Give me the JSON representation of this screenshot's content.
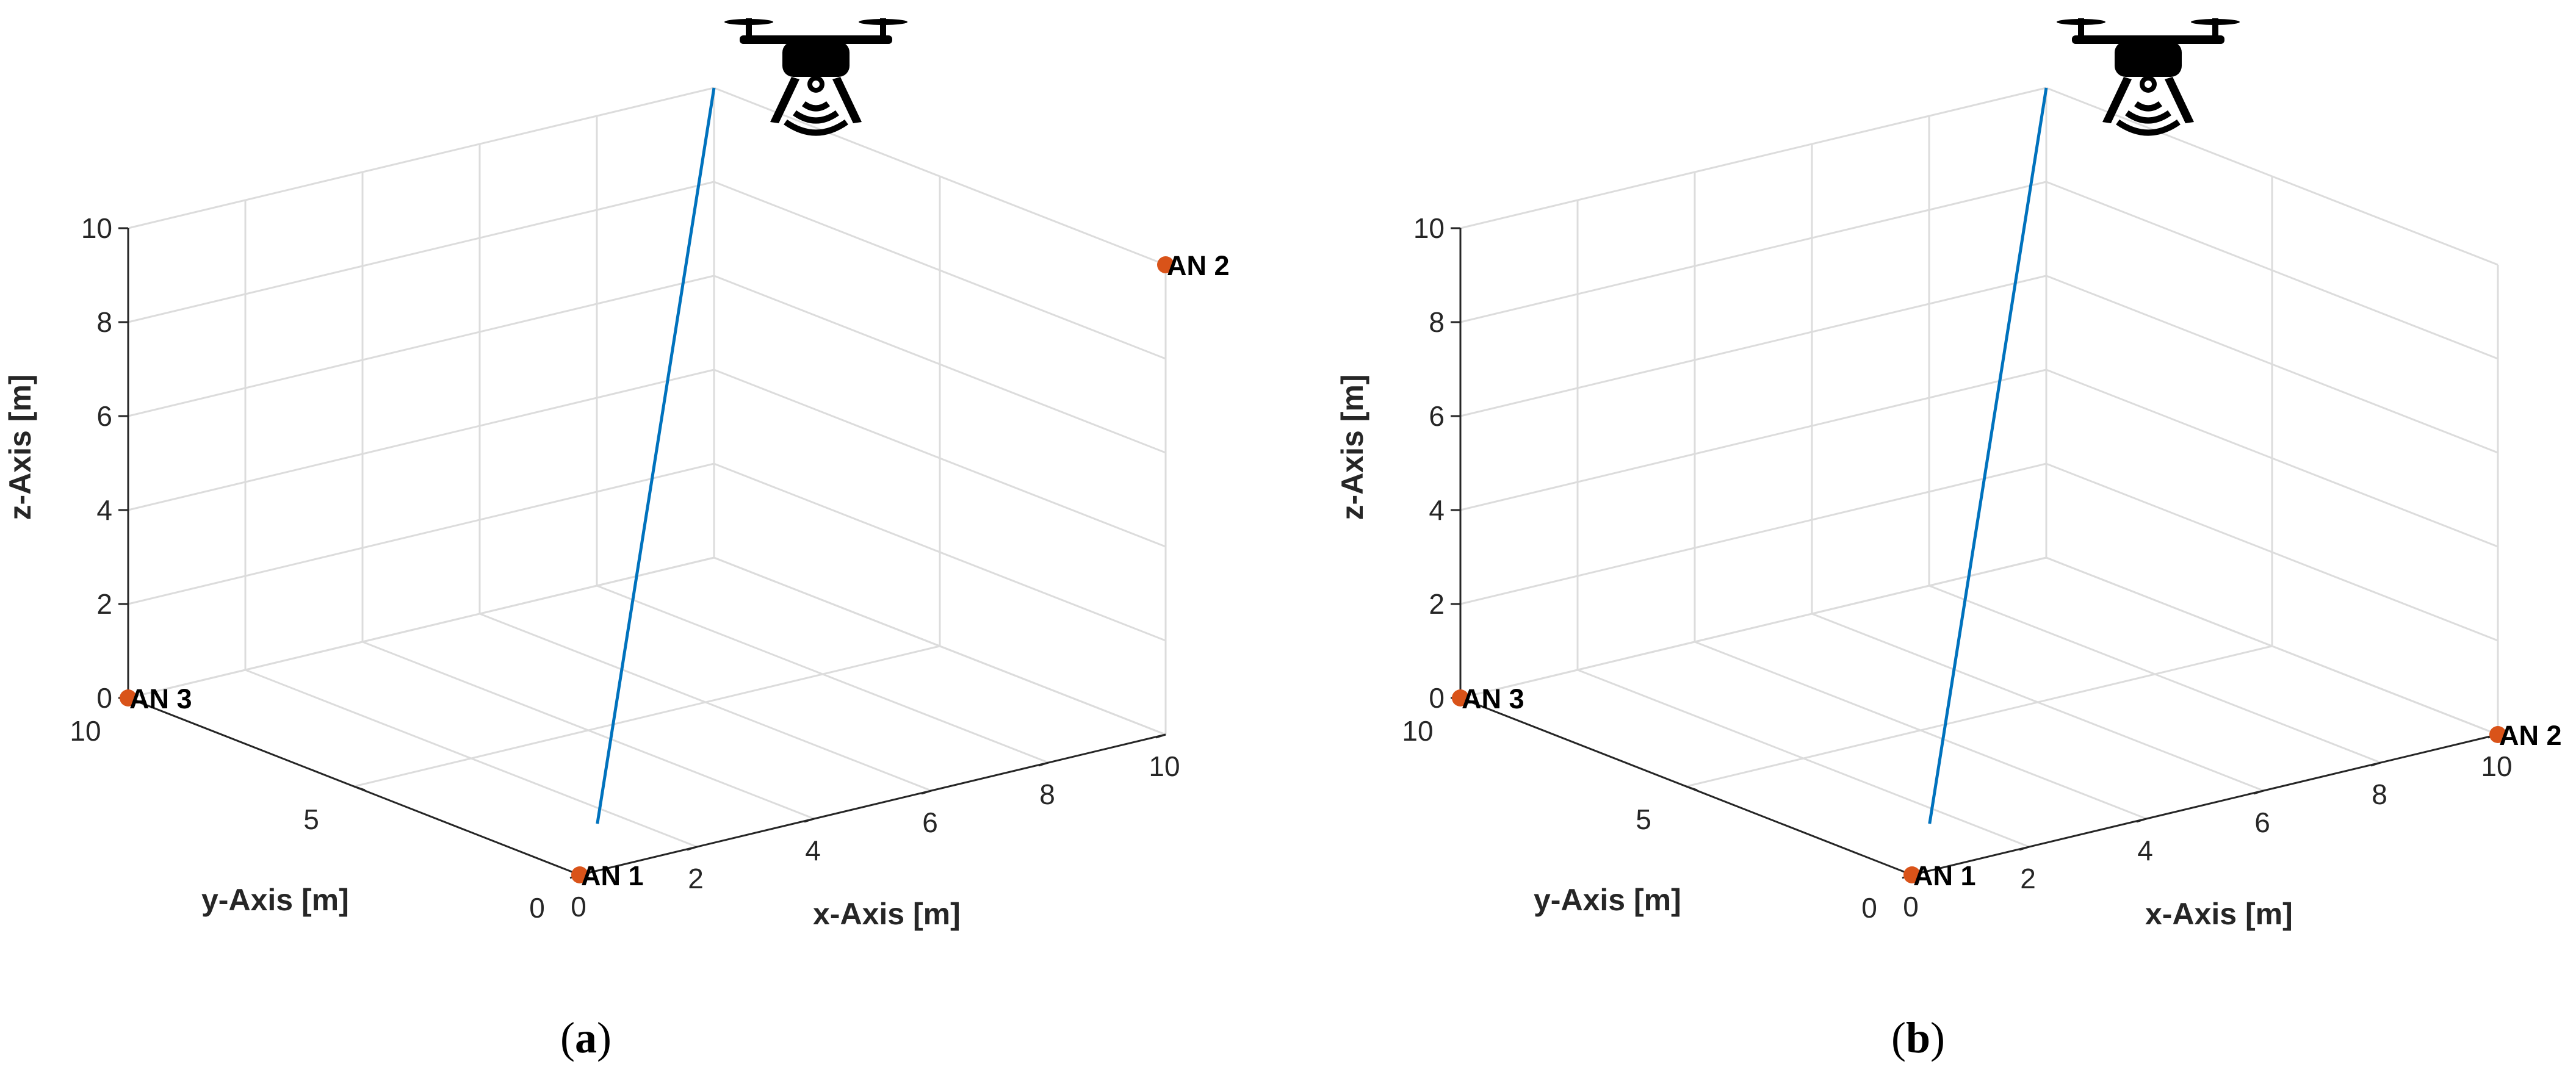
{
  "chart_data": [
    {
      "type": "scatter3d",
      "panel_label": "a",
      "xlabel": "x-Axis [m]",
      "ylabel": "y-Axis [m]",
      "zlabel": "z-Axis [m]",
      "xlim": [
        0,
        10
      ],
      "ylim": [
        0,
        10
      ],
      "zlim": [
        0,
        10
      ],
      "xticks": [
        0,
        2,
        4,
        6,
        8,
        10
      ],
      "yticks": [
        0,
        5,
        10
      ],
      "zticks": [
        0,
        2,
        4,
        6,
        8,
        10
      ],
      "grid": true,
      "points": [
        {
          "label": "AN 1",
          "x": 0,
          "y": 0,
          "z": 0
        },
        {
          "label": "AN 2",
          "x": 10,
          "y": 0,
          "z": 10
        },
        {
          "label": "AN 3",
          "x": 0,
          "y": 10,
          "z": 0
        }
      ],
      "line": {
        "x": [
          0.3,
          10
        ],
        "y": [
          0,
          10
        ],
        "z": [
          1,
          10
        ]
      },
      "icon": "drone-with-signal-icon"
    },
    {
      "type": "scatter3d",
      "panel_label": "b",
      "xlabel": "x-Axis [m]",
      "ylabel": "y-Axis [m]",
      "zlabel": "z-Axis [m]",
      "xlim": [
        0,
        10
      ],
      "ylim": [
        0,
        10
      ],
      "zlim": [
        0,
        10
      ],
      "xticks": [
        0,
        2,
        4,
        6,
        8,
        10
      ],
      "yticks": [
        0,
        5,
        10
      ],
      "zticks": [
        0,
        2,
        4,
        6,
        8,
        10
      ],
      "grid": true,
      "points": [
        {
          "label": "AN 1",
          "x": 0,
          "y": 0,
          "z": 0
        },
        {
          "label": "AN 2",
          "x": 10,
          "y": 0,
          "z": 0
        },
        {
          "label": "AN 3",
          "x": 0,
          "y": 10,
          "z": 0
        }
      ],
      "line": {
        "x": [
          0.3,
          10
        ],
        "y": [
          0,
          10
        ],
        "z": [
          1,
          10
        ]
      },
      "icon": "drone-with-signal-icon"
    }
  ],
  "colors": {
    "point": "#D95319",
    "line": "#0072BD",
    "grid": "#dcdcdc",
    "axis": "#262626"
  }
}
